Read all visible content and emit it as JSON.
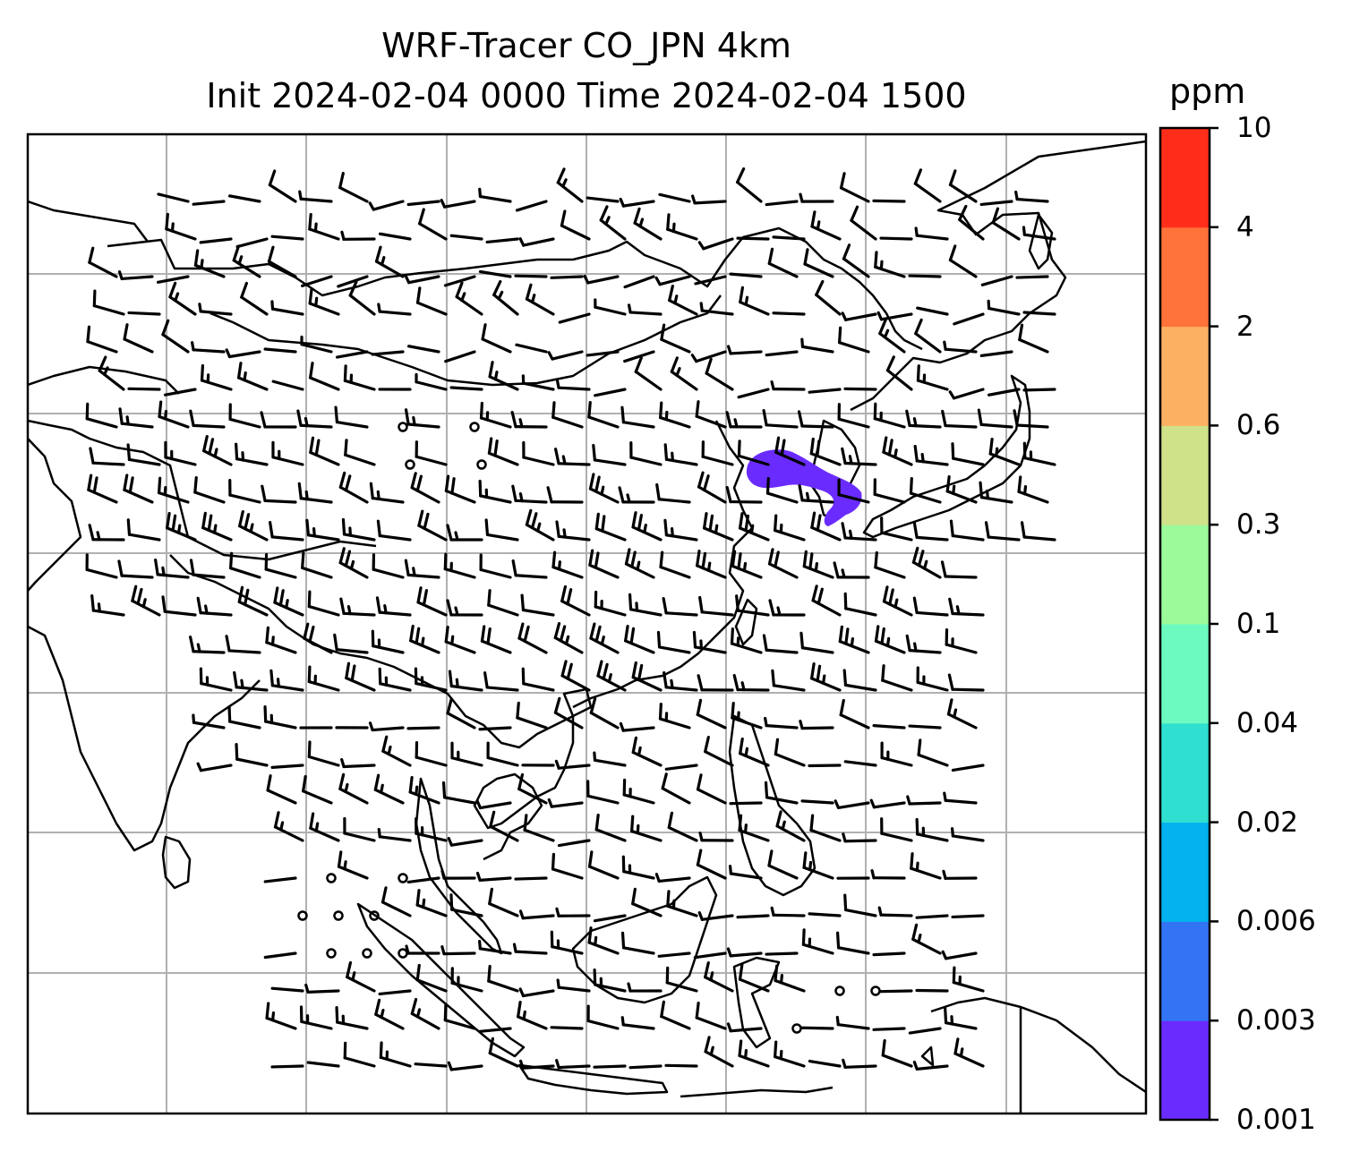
{
  "title": {
    "line1": "WRF-Tracer CO_JPN 4km",
    "line2": "Init 2024-02-04 0000 Time 2024-02-04 1500"
  },
  "map": {
    "region": "East and Southeast Asia",
    "field": "CO tracer concentration with wind barbs",
    "gridlines": true,
    "plume_color": "#6a2bff",
    "coastline_color": "#000000",
    "grid_color": "#b0b0b0"
  },
  "colorbar": {
    "unit": "ppm",
    "ticks": [
      "0.001",
      "0.003",
      "0.006",
      "0.02",
      "0.04",
      "0.1",
      "0.3",
      "0.6",
      "2",
      "4",
      "10"
    ],
    "colors": [
      "#6a2bff",
      "#3374f5",
      "#03b2ee",
      "#2fe0d0",
      "#6cfac0",
      "#9cfa9a",
      "#cfe28a",
      "#fcb062",
      "#ff7239",
      "#ff2d1a"
    ]
  }
}
